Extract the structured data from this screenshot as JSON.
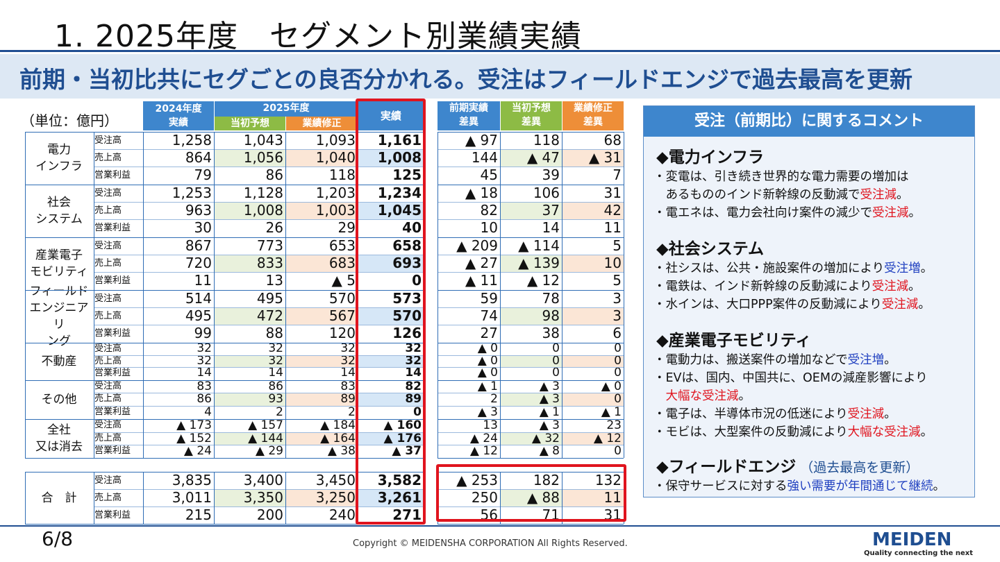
{
  "title": "1.  2025年度　セグメント別業績実績",
  "banner": "前期・当初比共にセグごとの良否分かれる。受注はフィールドエンジで過去最高を更新",
  "unit": "（単位：億円）",
  "headers": {
    "fy2024": "2024年度",
    "fy2024_sub": "実績",
    "fy2025": "2025年度",
    "initial": "当初予想",
    "revised": "業績修正",
    "actual": "実績",
    "diff_prev_1": "前期実績",
    "diff_prev_2": "差異",
    "diff_init_1": "当初予想",
    "diff_init_2": "差異",
    "diff_rev_1": "業績修正",
    "diff_rev_2": "差異"
  },
  "segments": [
    {
      "name": "電力\nインフラ",
      "rows": [
        {
          "label": "受注高",
          "v": [
            "1,258",
            "1,043",
            "1,093",
            "1,161"
          ],
          "d": [
            "▲ 97",
            "118",
            "68"
          ]
        },
        {
          "label": "売上高",
          "v": [
            "864",
            "1,056",
            "1,040",
            "1,008"
          ],
          "d": [
            "144",
            "▲ 47",
            "▲ 31"
          ]
        },
        {
          "label": "営業利益",
          "v": [
            "79",
            "86",
            "118",
            "125"
          ],
          "d": [
            "45",
            "39",
            "7"
          ]
        }
      ]
    },
    {
      "name": "社会\nシステム",
      "rows": [
        {
          "label": "受注高",
          "v": [
            "1,253",
            "1,128",
            "1,203",
            "1,234"
          ],
          "d": [
            "▲ 18",
            "106",
            "31"
          ]
        },
        {
          "label": "売上高",
          "v": [
            "963",
            "1,008",
            "1,003",
            "1,045"
          ],
          "d": [
            "82",
            "37",
            "42"
          ]
        },
        {
          "label": "営業利益",
          "v": [
            "30",
            "26",
            "29",
            "40"
          ],
          "d": [
            "10",
            "14",
            "11"
          ]
        }
      ]
    },
    {
      "name": "産業電子\nモビリティ",
      "rows": [
        {
          "label": "受注高",
          "v": [
            "867",
            "773",
            "653",
            "658"
          ],
          "d": [
            "▲ 209",
            "▲ 114",
            "5"
          ]
        },
        {
          "label": "売上高",
          "v": [
            "720",
            "833",
            "683",
            "693"
          ],
          "d": [
            "▲ 27",
            "▲ 139",
            "10"
          ]
        },
        {
          "label": "営業利益",
          "v": [
            "11",
            "13",
            "▲ 5",
            "0"
          ],
          "d": [
            "▲ 11",
            "▲ 12",
            "5"
          ]
        }
      ]
    },
    {
      "name": "フィールド\nエンジニアリ\nング",
      "rows": [
        {
          "label": "受注高",
          "v": [
            "514",
            "495",
            "570",
            "573"
          ],
          "d": [
            "59",
            "78",
            "3"
          ]
        },
        {
          "label": "売上高",
          "v": [
            "495",
            "472",
            "567",
            "570"
          ],
          "d": [
            "74",
            "98",
            "3"
          ]
        },
        {
          "label": "営業利益",
          "v": [
            "99",
            "88",
            "120",
            "126"
          ],
          "d": [
            "27",
            "38",
            "6"
          ]
        }
      ]
    },
    {
      "name": "不動産",
      "rows": [
        {
          "label": "受注高",
          "v": [
            "32",
            "32",
            "32",
            "32"
          ],
          "d": [
            "▲ 0",
            "0",
            "0"
          ]
        },
        {
          "label": "売上高",
          "v": [
            "32",
            "32",
            "32",
            "32"
          ],
          "d": [
            "▲ 0",
            "0",
            "0"
          ]
        },
        {
          "label": "営業利益",
          "v": [
            "14",
            "14",
            "14",
            "14"
          ],
          "d": [
            "▲ 0",
            "0",
            "0"
          ]
        }
      ]
    },
    {
      "name": "その他",
      "rows": [
        {
          "label": "受注高",
          "v": [
            "83",
            "86",
            "83",
            "82"
          ],
          "d": [
            "▲ 1",
            "▲ 3",
            "▲ 0"
          ]
        },
        {
          "label": "売上高",
          "v": [
            "86",
            "93",
            "89",
            "89"
          ],
          "d": [
            "2",
            "▲ 3",
            "0"
          ]
        },
        {
          "label": "営業利益",
          "v": [
            "4",
            "2",
            "2",
            "0"
          ],
          "d": [
            "▲ 3",
            "▲ 1",
            "▲ 1"
          ]
        }
      ]
    },
    {
      "name": "全社\n又は消去",
      "rows": [
        {
          "label": "受注高",
          "v": [
            "▲ 173",
            "▲ 157",
            "▲ 184",
            "▲ 160"
          ],
          "d": [
            "13",
            "▲ 3",
            "23"
          ]
        },
        {
          "label": "売上高",
          "v": [
            "▲ 152",
            "▲ 144",
            "▲ 164",
            "▲ 176"
          ],
          "d": [
            "▲ 24",
            "▲ 32",
            "▲ 12"
          ]
        },
        {
          "label": "営業利益",
          "v": [
            "▲ 24",
            "▲ 29",
            "▲ 38",
            "▲ 37"
          ],
          "d": [
            "▲ 12",
            "▲ 8",
            "0"
          ]
        }
      ]
    }
  ],
  "total": {
    "name": "合　計",
    "rows": [
      {
        "label": "受注高",
        "v": [
          "3,835",
          "3,400",
          "3,450",
          "3,582"
        ],
        "d": [
          "▲ 253",
          "182",
          "132"
        ]
      },
      {
        "label": "売上高",
        "v": [
          "3,011",
          "3,350",
          "3,250",
          "3,261"
        ],
        "d": [
          "250",
          "▲ 88",
          "11"
        ]
      },
      {
        "label": "営業利益",
        "v": [
          "215",
          "200",
          "240",
          "271"
        ],
        "d": [
          "56",
          "71",
          "31"
        ]
      }
    ]
  },
  "comment": {
    "header": "受注（前期比）に関するコメント",
    "sections": [
      {
        "title": "◆電力インフラ",
        "note": "",
        "lines": [
          [
            {
              "t": "・変電は、引き続き世界的な電力需要の増加は"
            }
          ],
          [
            {
              "t": "　あるもののインド新幹線の反動減で"
            },
            {
              "t": "受注減",
              "c": "red"
            },
            {
              "t": "。"
            }
          ],
          [
            {
              "t": "・電エネは、電力会社向け案件の減少で"
            },
            {
              "t": "受注減",
              "c": "red"
            },
            {
              "t": "。"
            }
          ]
        ]
      },
      {
        "title": "◆社会システム",
        "note": "",
        "lines": [
          [
            {
              "t": "・社シスは、公共・施設案件の増加により"
            },
            {
              "t": "受注増",
              "c": "blue"
            },
            {
              "t": "。"
            }
          ],
          [
            {
              "t": "・電鉄は、インド新幹線の反動減により"
            },
            {
              "t": "受注減",
              "c": "red"
            },
            {
              "t": "。"
            }
          ],
          [
            {
              "t": "・水インは、大口PPP案件の反動減により"
            },
            {
              "t": "受注減",
              "c": "red"
            },
            {
              "t": "。"
            }
          ]
        ]
      },
      {
        "title": "◆産業電子モビリティ",
        "note": "",
        "lines": [
          [
            {
              "t": "・電動力は、搬送案件の増加などで"
            },
            {
              "t": "受注増",
              "c": "blue"
            },
            {
              "t": "。"
            }
          ],
          [
            {
              "t": "・EVは、国内、中国共に、OEMの減産影響により"
            }
          ],
          [
            {
              "t": "　"
            },
            {
              "t": "大幅な受注減",
              "c": "red"
            },
            {
              "t": "。"
            }
          ],
          [
            {
              "t": "・電子は、半導体市況の低迷により"
            },
            {
              "t": "受注減",
              "c": "red"
            },
            {
              "t": "。"
            }
          ],
          [
            {
              "t": "・モビは、大型案件の反動減により"
            },
            {
              "t": "大幅な受注減",
              "c": "red"
            },
            {
              "t": "。"
            }
          ]
        ]
      },
      {
        "title": "◆フィールドエンジ",
        "note": "（過去最高を更新）",
        "lines": [
          [
            {
              "t": "・保守サービスに対する"
            },
            {
              "t": "強い需要が年間通じて継続",
              "c": "blue"
            },
            {
              "t": "。"
            }
          ]
        ]
      }
    ]
  },
  "footer": {
    "page": "6/8",
    "copyright": "Copyright © MEIDENSHA CORPORATION All Rights Reserved.",
    "logo": "MEIDEN",
    "tagline": "Quality connecting the next"
  }
}
